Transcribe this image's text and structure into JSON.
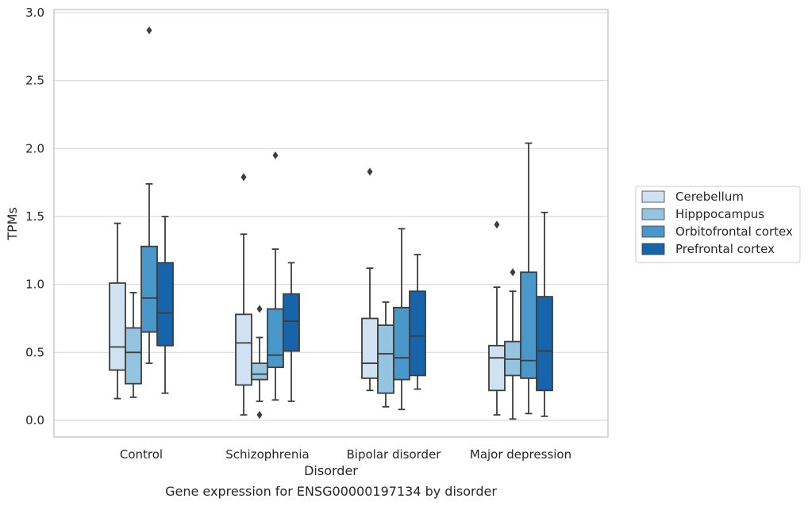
{
  "chart_data": {
    "type": "box",
    "caption": "Gene expression for ENSG00000197134 by disorder",
    "xlabel": "Disorder",
    "ylabel": "TPMs",
    "ylim": [
      -0.13,
      3.02
    ],
    "yticks": [
      "0.0",
      "0.5",
      "1.0",
      "1.5",
      "2.0",
      "2.5",
      "3.0"
    ],
    "grid": true,
    "legend_position": "center-right",
    "categories": [
      "Control",
      "Schizophrenia",
      "Bipolar disorder",
      "Major depression"
    ],
    "series": [
      {
        "name": "Cerebellum",
        "color": "#d0e1f2",
        "boxes": [
          {
            "min": 0.16,
            "q1": 0.37,
            "median": 0.54,
            "q3": 1.01,
            "max": 1.45,
            "outliers": []
          },
          {
            "min": 0.04,
            "q1": 0.26,
            "median": 0.57,
            "q3": 0.78,
            "max": 1.37,
            "outliers": [
              1.79
            ]
          },
          {
            "min": 0.22,
            "q1": 0.31,
            "median": 0.42,
            "q3": 0.75,
            "max": 1.12,
            "outliers": [
              1.83
            ]
          },
          {
            "min": 0.04,
            "q1": 0.22,
            "median": 0.46,
            "q3": 0.55,
            "max": 0.98,
            "outliers": [
              1.44
            ]
          }
        ]
      },
      {
        "name": "Hipppocampus",
        "color": "#94c4df",
        "boxes": [
          {
            "min": 0.17,
            "q1": 0.27,
            "median": 0.5,
            "q3": 0.68,
            "max": 0.94,
            "outliers": []
          },
          {
            "min": 0.14,
            "q1": 0.3,
            "median": 0.34,
            "q3": 0.42,
            "max": 0.61,
            "outliers": [
              0.82,
              0.04
            ]
          },
          {
            "min": 0.1,
            "q1": 0.2,
            "median": 0.49,
            "q3": 0.7,
            "max": 0.87,
            "outliers": []
          },
          {
            "min": 0.01,
            "q1": 0.33,
            "median": 0.45,
            "q3": 0.58,
            "max": 0.95,
            "outliers": [
              1.09
            ]
          }
        ]
      },
      {
        "name": "Orbitofrontal cortex",
        "color": "#4a98c9",
        "boxes": [
          {
            "min": 0.42,
            "q1": 0.65,
            "median": 0.9,
            "q3": 1.28,
            "max": 1.74,
            "outliers": [
              2.87
            ]
          },
          {
            "min": 0.15,
            "q1": 0.39,
            "median": 0.48,
            "q3": 0.82,
            "max": 1.26,
            "outliers": [
              1.95
            ]
          },
          {
            "min": 0.08,
            "q1": 0.3,
            "median": 0.46,
            "q3": 0.83,
            "max": 1.41,
            "outliers": []
          },
          {
            "min": 0.05,
            "q1": 0.31,
            "median": 0.44,
            "q3": 1.09,
            "max": 2.04,
            "outliers": []
          }
        ]
      },
      {
        "name": "Prefrontal cortex",
        "color": "#1764ab",
        "boxes": [
          {
            "min": 0.2,
            "q1": 0.55,
            "median": 0.79,
            "q3": 1.16,
            "max": 1.5,
            "outliers": []
          },
          {
            "min": 0.14,
            "q1": 0.51,
            "median": 0.73,
            "q3": 0.93,
            "max": 1.16,
            "outliers": []
          },
          {
            "min": 0.23,
            "q1": 0.33,
            "median": 0.62,
            "q3": 0.95,
            "max": 1.22,
            "outliers": []
          },
          {
            "min": 0.03,
            "q1": 0.22,
            "median": 0.51,
            "q3": 0.91,
            "max": 1.53,
            "outliers": []
          }
        ]
      }
    ]
  }
}
